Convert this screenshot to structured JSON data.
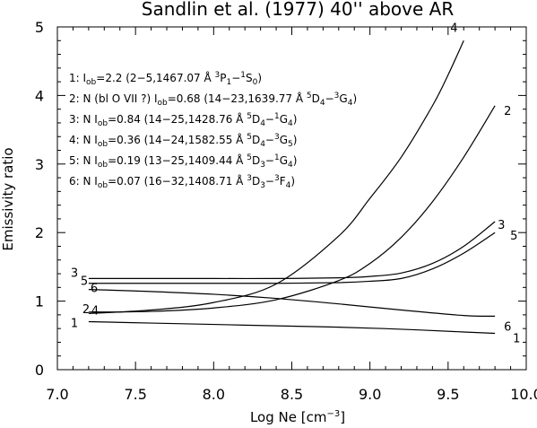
{
  "chart_data": {
    "type": "line",
    "title": "Sandlin et al. (1977)  40'' above AR",
    "xlabel_main": "Log Ne [cm",
    "xlabel_sup": "−3",
    "xlabel_end": "]",
    "ylabel": "Emissivity ratio",
    "xlim": [
      7.0,
      10.0
    ],
    "ylim": [
      0,
      5
    ],
    "xticks": [
      7.0,
      7.5,
      8.0,
      8.5,
      9.0,
      9.5,
      10.0
    ],
    "xtick_labels": [
      "7.0",
      "7.5",
      "8.0",
      "8.5",
      "9.0",
      "9.5",
      "10.0"
    ],
    "yticks": [
      0,
      1,
      2,
      3,
      4,
      5
    ],
    "ytick_labels": [
      "0",
      "1",
      "2",
      "3",
      "4",
      "5"
    ],
    "legend": [
      {
        "runs": [
          {
            "t": "1:  I"
          },
          {
            "t": "ob",
            "sub": true
          },
          {
            "t": "=2.2 (2−5,1467.07 Å "
          },
          {
            "t": "3",
            "sup": true
          },
          {
            "t": "P"
          },
          {
            "t": "1",
            "sub": true
          },
          {
            "t": "−"
          },
          {
            "t": "1",
            "sup": true
          },
          {
            "t": "S"
          },
          {
            "t": "0",
            "sub": true
          },
          {
            "t": ")"
          }
        ]
      },
      {
        "runs": [
          {
            "t": "2: N (bl O VII ?) I"
          },
          {
            "t": "ob",
            "sub": true
          },
          {
            "t": "=0.68 (14−23,1639.77 Å "
          },
          {
            "t": "5",
            "sup": true
          },
          {
            "t": "D"
          },
          {
            "t": "4",
            "sub": true
          },
          {
            "t": "−"
          },
          {
            "t": "3",
            "sup": true
          },
          {
            "t": "G"
          },
          {
            "t": "4",
            "sub": true
          },
          {
            "t": ")"
          }
        ]
      },
      {
        "runs": [
          {
            "t": "3: N I"
          },
          {
            "t": "ob",
            "sub": true
          },
          {
            "t": "=0.84 (14−25,1428.76 Å "
          },
          {
            "t": "5",
            "sup": true
          },
          {
            "t": "D"
          },
          {
            "t": "4",
            "sub": true
          },
          {
            "t": "−"
          },
          {
            "t": "1",
            "sup": true
          },
          {
            "t": "G"
          },
          {
            "t": "4",
            "sub": true
          },
          {
            "t": ")"
          }
        ]
      },
      {
        "runs": [
          {
            "t": "4: N I"
          },
          {
            "t": "ob",
            "sub": true
          },
          {
            "t": "=0.36 (14−24,1582.55 Å "
          },
          {
            "t": "5",
            "sup": true
          },
          {
            "t": "D"
          },
          {
            "t": "4",
            "sub": true
          },
          {
            "t": "−"
          },
          {
            "t": "3",
            "sup": true
          },
          {
            "t": "G"
          },
          {
            "t": "5",
            "sub": true
          },
          {
            "t": ")"
          }
        ]
      },
      {
        "runs": [
          {
            "t": "5: N I"
          },
          {
            "t": "ob",
            "sub": true
          },
          {
            "t": "=0.19 (13−25,1409.44 Å "
          },
          {
            "t": "5",
            "sup": true
          },
          {
            "t": "D"
          },
          {
            "t": "3",
            "sub": true
          },
          {
            "t": "−"
          },
          {
            "t": "1",
            "sup": true
          },
          {
            "t": "G"
          },
          {
            "t": "4",
            "sub": true
          },
          {
            "t": ")"
          }
        ]
      },
      {
        "runs": [
          {
            "t": "6: N I"
          },
          {
            "t": "ob",
            "sub": true
          },
          {
            "t": "=0.07 (16−32,1408.71 Å "
          },
          {
            "t": "3",
            "sup": true
          },
          {
            "t": "D"
          },
          {
            "t": "3",
            "sub": true
          },
          {
            "t": "−"
          },
          {
            "t": "3",
            "sup": true
          },
          {
            "t": "F"
          },
          {
            "t": "4",
            "sub": true
          },
          {
            "t": ")"
          }
        ]
      }
    ],
    "series": [
      {
        "label": "1",
        "x": [
          7.2,
          7.6,
          8.0,
          8.4,
          8.8,
          9.2,
          9.6,
          9.8
        ],
        "y": [
          0.7,
          0.68,
          0.66,
          0.64,
          0.62,
          0.59,
          0.55,
          0.53
        ],
        "label_left_text": "1",
        "label_right_text": "1"
      },
      {
        "label": "2",
        "x": [
          7.2,
          7.6,
          8.0,
          8.4,
          8.8,
          9.0,
          9.2,
          9.4,
          9.6,
          9.8
        ],
        "y": [
          0.84,
          0.85,
          0.9,
          1.02,
          1.3,
          1.55,
          1.93,
          2.45,
          3.1,
          3.85
        ],
        "label_left_text": "2",
        "label_right_text": "2"
      },
      {
        "label": "3",
        "x": [
          7.2,
          7.6,
          8.0,
          8.4,
          8.8,
          9.0,
          9.2,
          9.4,
          9.6,
          9.8
        ],
        "y": [
          1.33,
          1.33,
          1.33,
          1.33,
          1.34,
          1.36,
          1.41,
          1.55,
          1.8,
          2.16
        ],
        "label_left_text": "3",
        "label_right_text": "3"
      },
      {
        "label": "4",
        "x": [
          7.2,
          7.6,
          8.0,
          8.4,
          8.8,
          9.0,
          9.2,
          9.4,
          9.5,
          9.6
        ],
        "y": [
          0.82,
          0.87,
          0.98,
          1.25,
          1.95,
          2.5,
          3.1,
          3.85,
          4.3,
          4.8
        ],
        "label_left_text": "4",
        "label_right_text": "4"
      },
      {
        "label": "5",
        "x": [
          7.2,
          7.6,
          8.0,
          8.4,
          8.8,
          9.0,
          9.2,
          9.4,
          9.6,
          9.8
        ],
        "y": [
          1.26,
          1.26,
          1.26,
          1.26,
          1.27,
          1.29,
          1.33,
          1.47,
          1.7,
          2.0
        ],
        "label_left_text": "5",
        "label_right_text": "5"
      },
      {
        "label": "6",
        "x": [
          7.2,
          7.6,
          8.0,
          8.4,
          8.8,
          9.2,
          9.6,
          9.8
        ],
        "y": [
          1.17,
          1.14,
          1.1,
          1.04,
          0.96,
          0.87,
          0.79,
          0.78
        ],
        "label_left_text": "6",
        "label_right_text": "6"
      }
    ],
    "grid": false,
    "legend_position": "upper-left inside plot"
  }
}
